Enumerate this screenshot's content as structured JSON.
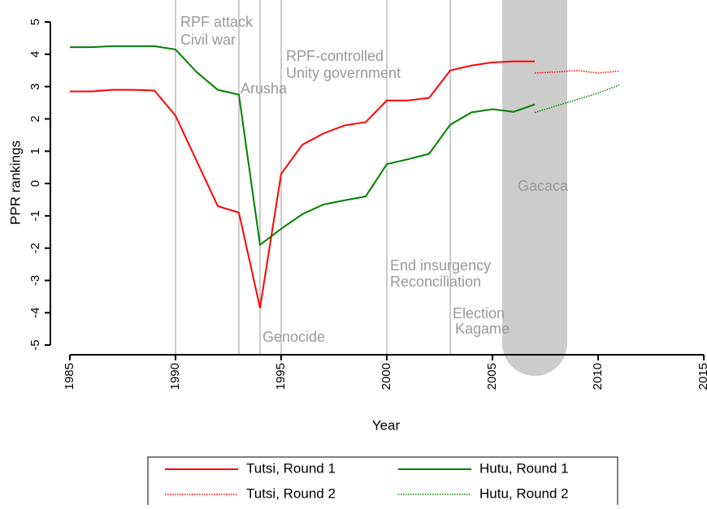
{
  "chart_data": {
    "type": "line",
    "xlabel": "Year",
    "ylabel": "PPR rankings",
    "xlim": [
      1984.08,
      2015.15
    ],
    "ylim": [
      -5.3,
      5.68
    ],
    "xticks": [
      1985,
      1990,
      1995,
      2000,
      2005,
      2010,
      2015
    ],
    "yticks": [
      -5,
      -4,
      -3,
      -2,
      -1,
      0,
      1,
      2,
      3,
      4,
      5
    ],
    "event_lines": [
      1990,
      1993,
      1994,
      1995,
      2000,
      2003
    ],
    "annotations": [
      "RPF attack",
      "Civil war",
      "Arusha",
      "RPF-controlled",
      "Unity government",
      "Genocide",
      "End insurgency",
      "Reconciliation",
      "Election",
      "Kagame",
      "Gacaca"
    ],
    "series": [
      {
        "name": "Tutsi, Round 1",
        "color": "#ff0000",
        "style": "solid",
        "x": [
          1985,
          1986,
          1987,
          1988,
          1989,
          1990,
          1991,
          1992,
          1993,
          1994,
          1995,
          1996,
          1997,
          1998,
          1999,
          2000,
          2001,
          2002,
          2003,
          2004,
          2005,
          2006,
          2007
        ],
        "values": [
          2.85,
          2.85,
          2.9,
          2.9,
          2.88,
          2.1,
          0.7,
          -0.7,
          -0.9,
          -3.85,
          0.3,
          1.2,
          1.55,
          1.8,
          1.9,
          2.57,
          2.57,
          2.65,
          3.5,
          3.65,
          3.75,
          3.78,
          3.78
        ]
      },
      {
        "name": "Hutu, Round 1",
        "color": "#008000",
        "style": "solid",
        "x": [
          1985,
          1986,
          1987,
          1988,
          1989,
          1990,
          1991,
          1992,
          1993,
          1994,
          1995,
          1996,
          1997,
          1998,
          1999,
          2000,
          2001,
          2002,
          2003,
          2004,
          2005,
          2006,
          2007
        ],
        "values": [
          4.22,
          4.22,
          4.25,
          4.25,
          4.25,
          4.15,
          3.45,
          2.9,
          2.75,
          -1.9,
          -1.4,
          -0.95,
          -0.65,
          -0.52,
          -0.4,
          0.6,
          0.75,
          0.92,
          1.82,
          2.2,
          2.3,
          2.22,
          2.45
        ]
      },
      {
        "name": "Tutsi, Round 2",
        "color": "#ff0000",
        "style": "dotted",
        "x": [
          2007,
          2008,
          2009,
          2010,
          2011
        ],
        "values": [
          3.42,
          3.45,
          3.5,
          3.42,
          3.48
        ]
      },
      {
        "name": "Hutu, Round 2",
        "color": "#008000",
        "style": "dotted",
        "x": [
          2007,
          2008,
          2009,
          2010,
          2011
        ],
        "values": [
          2.2,
          2.4,
          2.6,
          2.8,
          3.05
        ]
      }
    ]
  }
}
